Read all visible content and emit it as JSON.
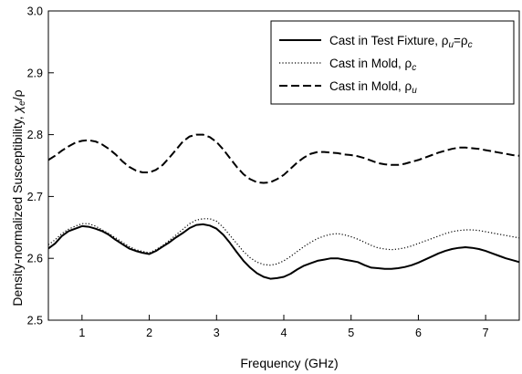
{
  "chart_data": {
    "type": "line",
    "title": "",
    "xlabel": "Frequency (GHz)",
    "ylabel": {
      "main": "Density-normalized Susceptibility, ",
      "chi": "χ",
      "sub": "e",
      "tail": "/ρ"
    },
    "xlim": [
      0.5,
      7.5
    ],
    "ylim": [
      2.5,
      3.0
    ],
    "x_ticks": [
      "1",
      "2",
      "3",
      "4",
      "5",
      "6",
      "7"
    ],
    "y_ticks": [
      "2.5",
      "2.6",
      "2.7",
      "2.8",
      "2.9",
      "3.0"
    ],
    "grid": false,
    "legend_position": "top-right",
    "series": [
      {
        "name": "Cast in Test Fixture, ρu=ρc",
        "legend": {
          "main": "Cast in Test Fixture, ρ",
          "s1": "u",
          "mid": "=ρ",
          "s2": "c"
        },
        "style": "solid",
        "x": [
          0.5,
          0.6,
          0.7,
          0.8,
          0.9,
          1.0,
          1.1,
          1.2,
          1.3,
          1.4,
          1.5,
          1.6,
          1.7,
          1.8,
          1.9,
          2.0,
          2.1,
          2.2,
          2.3,
          2.4,
          2.5,
          2.6,
          2.7,
          2.8,
          2.9,
          3.0,
          3.1,
          3.2,
          3.3,
          3.4,
          3.5,
          3.6,
          3.7,
          3.8,
          3.9,
          4.0,
          4.1,
          4.2,
          4.3,
          4.4,
          4.5,
          4.6,
          4.7,
          4.8,
          4.9,
          5.0,
          5.1,
          5.2,
          5.3,
          5.4,
          5.5,
          5.6,
          5.7,
          5.8,
          5.9,
          6.0,
          6.1,
          6.2,
          6.3,
          6.4,
          6.5,
          6.6,
          6.7,
          6.8,
          6.9,
          7.0,
          7.1,
          7.2,
          7.3,
          7.4,
          7.5
        ],
        "y": [
          2.616,
          2.624,
          2.636,
          2.644,
          2.648,
          2.652,
          2.651,
          2.648,
          2.644,
          2.638,
          2.63,
          2.623,
          2.616,
          2.612,
          2.609,
          2.607,
          2.612,
          2.619,
          2.626,
          2.634,
          2.641,
          2.649,
          2.654,
          2.655,
          2.653,
          2.648,
          2.638,
          2.625,
          2.61,
          2.596,
          2.585,
          2.576,
          2.57,
          2.567,
          2.568,
          2.57,
          2.575,
          2.582,
          2.588,
          2.592,
          2.596,
          2.598,
          2.6,
          2.6,
          2.598,
          2.596,
          2.594,
          2.589,
          2.585,
          2.584,
          2.583,
          2.583,
          2.584,
          2.586,
          2.589,
          2.593,
          2.598,
          2.603,
          2.608,
          2.612,
          2.615,
          2.617,
          2.618,
          2.617,
          2.615,
          2.612,
          2.608,
          2.604,
          2.6,
          2.597,
          2.594
        ]
      },
      {
        "name": "Cast in Mold, ρc",
        "legend": {
          "main": "Cast in Mold, ρ",
          "s1": "c",
          "mid": "",
          "s2": ""
        },
        "style": "dotted",
        "x": [
          0.5,
          0.6,
          0.7,
          0.8,
          0.9,
          1.0,
          1.1,
          1.2,
          1.3,
          1.4,
          1.5,
          1.6,
          1.7,
          1.8,
          1.9,
          2.0,
          2.1,
          2.2,
          2.3,
          2.4,
          2.5,
          2.6,
          2.7,
          2.8,
          2.9,
          3.0,
          3.1,
          3.2,
          3.3,
          3.4,
          3.5,
          3.6,
          3.7,
          3.8,
          3.9,
          4.0,
          4.1,
          4.2,
          4.3,
          4.4,
          4.5,
          4.6,
          4.7,
          4.8,
          4.9,
          5.0,
          5.1,
          5.2,
          5.3,
          5.4,
          5.5,
          5.6,
          5.7,
          5.8,
          5.9,
          6.0,
          6.1,
          6.2,
          6.3,
          6.4,
          6.5,
          6.6,
          6.7,
          6.8,
          6.9,
          7.0,
          7.1,
          7.2,
          7.3,
          7.4,
          7.5
        ],
        "y": [
          2.622,
          2.63,
          2.64,
          2.647,
          2.652,
          2.656,
          2.656,
          2.652,
          2.646,
          2.64,
          2.633,
          2.626,
          2.619,
          2.614,
          2.611,
          2.609,
          2.614,
          2.621,
          2.629,
          2.638,
          2.647,
          2.656,
          2.662,
          2.664,
          2.664,
          2.66,
          2.65,
          2.637,
          2.624,
          2.611,
          2.601,
          2.594,
          2.59,
          2.589,
          2.591,
          2.596,
          2.603,
          2.611,
          2.619,
          2.626,
          2.632,
          2.636,
          2.639,
          2.64,
          2.638,
          2.635,
          2.631,
          2.626,
          2.621,
          2.617,
          2.615,
          2.614,
          2.615,
          2.617,
          2.62,
          2.624,
          2.628,
          2.632,
          2.636,
          2.64,
          2.643,
          2.645,
          2.646,
          2.646,
          2.645,
          2.643,
          2.641,
          2.639,
          2.637,
          2.635,
          2.633
        ]
      },
      {
        "name": "Cast in Mold, ρu",
        "legend": {
          "main": "Cast in Mold, ρ",
          "s1": "u",
          "mid": "",
          "s2": ""
        },
        "style": "dashed",
        "x": [
          0.5,
          0.6,
          0.7,
          0.8,
          0.9,
          1.0,
          1.1,
          1.2,
          1.3,
          1.4,
          1.5,
          1.6,
          1.7,
          1.8,
          1.9,
          2.0,
          2.1,
          2.2,
          2.3,
          2.4,
          2.5,
          2.6,
          2.7,
          2.8,
          2.9,
          3.0,
          3.1,
          3.2,
          3.3,
          3.4,
          3.5,
          3.6,
          3.7,
          3.8,
          3.9,
          4.0,
          4.1,
          4.2,
          4.3,
          4.4,
          4.5,
          4.6,
          4.7,
          4.8,
          4.9,
          5.0,
          5.1,
          5.2,
          5.3,
          5.4,
          5.5,
          5.6,
          5.7,
          5.8,
          5.9,
          6.0,
          6.1,
          6.2,
          6.3,
          6.4,
          6.5,
          6.6,
          6.7,
          6.8,
          6.9,
          7.0,
          7.1,
          7.2,
          7.3,
          7.4,
          7.5
        ],
        "y": [
          2.759,
          2.766,
          2.774,
          2.781,
          2.787,
          2.79,
          2.791,
          2.789,
          2.784,
          2.777,
          2.768,
          2.757,
          2.748,
          2.742,
          2.739,
          2.739,
          2.743,
          2.751,
          2.763,
          2.776,
          2.789,
          2.797,
          2.8,
          2.8,
          2.796,
          2.788,
          2.776,
          2.762,
          2.748,
          2.736,
          2.728,
          2.723,
          2.722,
          2.723,
          2.728,
          2.735,
          2.745,
          2.755,
          2.763,
          2.769,
          2.772,
          2.772,
          2.771,
          2.77,
          2.768,
          2.767,
          2.765,
          2.762,
          2.758,
          2.754,
          2.752,
          2.751,
          2.751,
          2.753,
          2.756,
          2.759,
          2.763,
          2.767,
          2.771,
          2.774,
          2.777,
          2.779,
          2.779,
          2.778,
          2.777,
          2.775,
          2.773,
          2.771,
          2.769,
          2.767,
          2.766
        ]
      }
    ]
  }
}
